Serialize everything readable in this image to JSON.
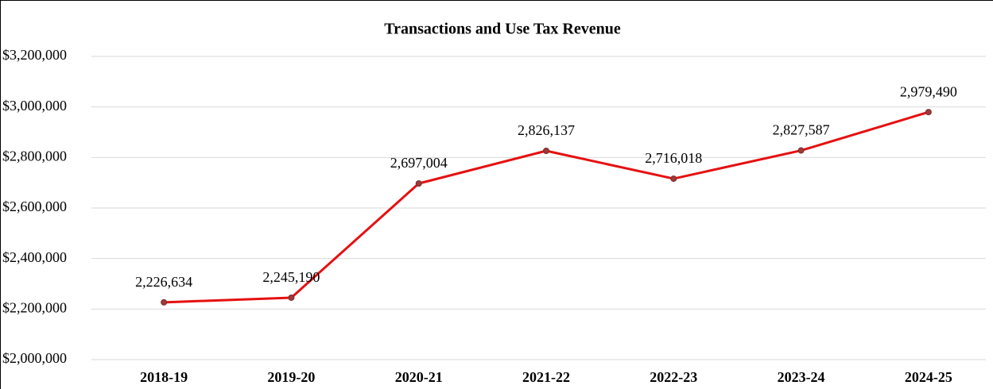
{
  "chart_data": {
    "type": "line",
    "title": "Transactions and Use Tax Revenue",
    "categories": [
      "2018-19",
      "2019-20",
      "2020-21",
      "2021-22",
      "2022-23",
      "2023-24",
      "2024-25"
    ],
    "series": [
      {
        "color": "#e61010",
        "values": [
          2226634,
          2245190,
          2697004,
          2826137,
          2716018,
          2827587,
          2979490
        ],
        "value_labels": [
          "2,226,634",
          "2,245,190",
          "2,697,004",
          "2,826,137",
          "2,716,018",
          "2,827,587",
          "2,979,490"
        ]
      }
    ],
    "ylim": [
      2000000,
      3200000
    ],
    "yticks": [
      {
        "value": 2000000,
        "label": "$2,000,000"
      },
      {
        "value": 2200000,
        "label": "$2,200,000"
      },
      {
        "value": 2400000,
        "label": "$2,400,000"
      },
      {
        "value": 2600000,
        "label": "$2,600,000"
      },
      {
        "value": 2800000,
        "label": "$2,800,000"
      },
      {
        "value": 3000000,
        "label": "$3,000,000"
      },
      {
        "value": 3200000,
        "label": "$3,200,000"
      }
    ],
    "grid": true
  }
}
